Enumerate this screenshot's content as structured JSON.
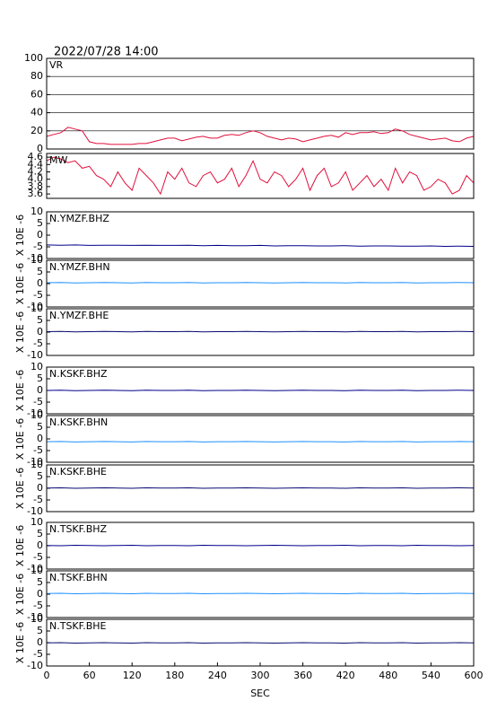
{
  "chart_data": [
    {
      "type": "line",
      "title": "2022/07/28 14:00",
      "label": "VR",
      "color": "#e0103c",
      "grid": true,
      "x": [
        0,
        10,
        20,
        30,
        40,
        50,
        60,
        70,
        80,
        90,
        100,
        110,
        120,
        130,
        140,
        150,
        160,
        170,
        180,
        190,
        200,
        210,
        220,
        230,
        240,
        250,
        260,
        270,
        280,
        290,
        300,
        310,
        320,
        330,
        340,
        350,
        360,
        370,
        380,
        390,
        400,
        410,
        420,
        430,
        440,
        450,
        460,
        470,
        480,
        490,
        500,
        510,
        520,
        530,
        540,
        550,
        560,
        570,
        580,
        590,
        600
      ],
      "values": [
        14,
        16,
        18,
        24,
        22,
        20,
        8,
        6,
        6,
        5,
        5,
        5,
        5,
        6,
        6,
        8,
        10,
        12,
        12,
        9,
        11,
        13,
        14,
        12,
        12,
        15,
        16,
        15,
        18,
        20,
        18,
        14,
        12,
        10,
        12,
        11,
        8,
        10,
        12,
        14,
        15,
        13,
        18,
        16,
        18,
        18,
        19,
        17,
        18,
        22,
        20,
        16,
        14,
        12,
        10,
        11,
        12,
        9,
        8,
        12,
        14
      ],
      "ylim": [
        0,
        100
      ],
      "yticks": [
        0,
        20,
        40,
        60,
        80,
        100
      ]
    },
    {
      "type": "line",
      "label": "MW",
      "color": "#e0103c",
      "x": [
        0,
        10,
        20,
        30,
        40,
        50,
        60,
        70,
        80,
        90,
        100,
        110,
        120,
        130,
        140,
        150,
        160,
        170,
        180,
        190,
        200,
        210,
        220,
        230,
        240,
        250,
        260,
        270,
        280,
        290,
        300,
        310,
        320,
        330,
        340,
        350,
        360,
        370,
        380,
        390,
        400,
        410,
        420,
        430,
        440,
        450,
        460,
        470,
        480,
        490,
        500,
        510,
        520,
        530,
        540,
        550,
        560,
        570,
        580,
        590,
        600
      ],
      "values": [
        4.5,
        4.6,
        4.55,
        4.45,
        4.5,
        4.3,
        4.35,
        4.1,
        4.0,
        3.8,
        4.2,
        3.9,
        3.7,
        4.3,
        4.1,
        3.9,
        3.6,
        4.2,
        4.0,
        4.3,
        3.9,
        3.8,
        4.1,
        4.2,
        3.9,
        4.0,
        4.3,
        3.8,
        4.1,
        4.5,
        4.0,
        3.9,
        4.2,
        4.1,
        3.8,
        4.0,
        4.3,
        3.7,
        4.1,
        4.3,
        3.8,
        3.9,
        4.2,
        3.7,
        3.9,
        4.1,
        3.8,
        4.0,
        3.7,
        4.3,
        3.9,
        4.2,
        4.1,
        3.7,
        3.8,
        4.0,
        3.9,
        3.6,
        3.7,
        4.1,
        3.9
      ],
      "ylim": [
        3.48,
        4.7
      ],
      "yticks": [
        3.6,
        3.8,
        {
          "value": 4,
          "label": "4.0"
        },
        4.2,
        4.4,
        4.6
      ]
    },
    {
      "type": "line",
      "label": "N.YMZF.BHZ",
      "ylabel": "X 10E -6",
      "color": "#00008b",
      "x": [
        0,
        20,
        40,
        60,
        80,
        100,
        120,
        140,
        160,
        180,
        200,
        220,
        240,
        260,
        280,
        300,
        320,
        340,
        360,
        380,
        400,
        420,
        440,
        460,
        480,
        500,
        520,
        540,
        560,
        580,
        600
      ],
      "values": [
        -4.2,
        -4.3,
        -4.2,
        -4.4,
        -4.3,
        -4.3,
        -4.4,
        -4.3,
        -4.4,
        -4.4,
        -4.3,
        -4.5,
        -4.4,
        -4.5,
        -4.5,
        -4.4,
        -4.6,
        -4.5,
        -4.5,
        -4.6,
        -4.6,
        -4.5,
        -4.7,
        -4.6,
        -4.6,
        -4.7,
        -4.7,
        -4.6,
        -4.8,
        -4.7,
        -4.8
      ],
      "ylim": [
        -10,
        10
      ],
      "yticks": [
        -10,
        -5,
        0,
        5,
        10
      ]
    },
    {
      "type": "line",
      "label": "N.YMZF.BHN",
      "ylabel": "X 10E -6",
      "color": "#1e90ff",
      "x": [
        0,
        20,
        40,
        60,
        80,
        100,
        120,
        140,
        160,
        180,
        200,
        220,
        240,
        260,
        280,
        300,
        320,
        340,
        360,
        380,
        400,
        420,
        440,
        460,
        480,
        500,
        520,
        540,
        560,
        580,
        600
      ],
      "values": [
        0.4,
        0.5,
        0.3,
        0.4,
        0.5,
        0.4,
        0.3,
        0.5,
        0.4,
        0.4,
        0.5,
        0.3,
        0.4,
        0.4,
        0.5,
        0.4,
        0.3,
        0.4,
        0.5,
        0.4,
        0.4,
        0.3,
        0.5,
        0.4,
        0.4,
        0.5,
        0.3,
        0.4,
        0.4,
        0.5,
        0.4
      ],
      "ylim": [
        -10,
        10
      ],
      "yticks": [
        -10,
        -5,
        0,
        5,
        10
      ]
    },
    {
      "type": "line",
      "label": "N.YMZF.BHE",
      "ylabel": "X 10E -6",
      "color": "#0a0a70",
      "x": [
        0,
        20,
        40,
        60,
        80,
        100,
        120,
        140,
        160,
        180,
        200,
        220,
        240,
        260,
        280,
        300,
        320,
        340,
        360,
        380,
        400,
        420,
        440,
        460,
        480,
        500,
        520,
        540,
        560,
        580,
        600
      ],
      "values": [
        0.2,
        0.3,
        0.1,
        0.2,
        0.3,
        0.2,
        0.1,
        0.3,
        0.2,
        0.2,
        0.3,
        0.1,
        0.2,
        0.2,
        0.3,
        0.2,
        0.1,
        0.2,
        0.3,
        0.2,
        0.2,
        0.1,
        0.3,
        0.2,
        0.2,
        0.3,
        0.1,
        0.2,
        0.2,
        0.3,
        0.2
      ],
      "ylim": [
        -10,
        10
      ],
      "yticks": [
        -10,
        -5,
        0,
        5,
        10
      ]
    },
    {
      "type": "line",
      "label": "N.KSKF.BHZ",
      "ylabel": "X 10E -6",
      "color": "#00008b",
      "x": [
        0,
        20,
        40,
        60,
        80,
        100,
        120,
        140,
        160,
        180,
        200,
        220,
        240,
        260,
        280,
        300,
        320,
        340,
        360,
        380,
        400,
        420,
        440,
        460,
        480,
        500,
        520,
        540,
        560,
        580,
        600
      ],
      "values": [
        0.0,
        0.1,
        -0.1,
        0.0,
        0.1,
        0.0,
        -0.1,
        0.1,
        0.0,
        0.0,
        0.1,
        -0.1,
        0.0,
        0.0,
        0.1,
        0.0,
        -0.1,
        0.0,
        0.1,
        0.0,
        0.0,
        -0.1,
        0.1,
        0.0,
        0.0,
        0.1,
        -0.1,
        0.0,
        0.0,
        0.1,
        0.0
      ],
      "ylim": [
        -10,
        10
      ],
      "yticks": [
        -10,
        -5,
        0,
        5,
        10
      ]
    },
    {
      "type": "line",
      "label": "N.KSKF.BHN",
      "ylabel": "X 10E -6",
      "color": "#1e90ff",
      "x": [
        0,
        20,
        40,
        60,
        80,
        100,
        120,
        140,
        160,
        180,
        200,
        220,
        240,
        260,
        280,
        300,
        320,
        340,
        360,
        380,
        400,
        420,
        440,
        460,
        480,
        500,
        520,
        540,
        560,
        580,
        600
      ],
      "values": [
        -1.2,
        -1.1,
        -1.3,
        -1.2,
        -1.1,
        -1.2,
        -1.3,
        -1.1,
        -1.2,
        -1.2,
        -1.1,
        -1.3,
        -1.2,
        -1.2,
        -1.1,
        -1.2,
        -1.3,
        -1.2,
        -1.1,
        -1.2,
        -1.2,
        -1.3,
        -1.1,
        -1.2,
        -1.2,
        -1.1,
        -1.3,
        -1.2,
        -1.2,
        -1.1,
        -1.2
      ],
      "ylim": [
        -10,
        10
      ],
      "yticks": [
        -10,
        -5,
        0,
        5,
        10
      ]
    },
    {
      "type": "line",
      "label": "N.KSKF.BHE",
      "ylabel": "X 10E -6",
      "color": "#0a0a70",
      "x": [
        0,
        20,
        40,
        60,
        80,
        100,
        120,
        140,
        160,
        180,
        200,
        220,
        240,
        260,
        280,
        300,
        320,
        340,
        360,
        380,
        400,
        420,
        440,
        460,
        480,
        500,
        520,
        540,
        560,
        580,
        600
      ],
      "values": [
        0.1,
        0.2,
        0.0,
        0.1,
        0.2,
        0.1,
        0.0,
        0.2,
        0.1,
        0.1,
        0.2,
        0.0,
        0.1,
        0.1,
        0.2,
        0.1,
        0.0,
        0.1,
        0.2,
        0.1,
        0.1,
        0.0,
        0.2,
        0.1,
        0.1,
        0.2,
        0.0,
        0.1,
        0.1,
        0.2,
        0.1
      ],
      "ylim": [
        -10,
        10
      ],
      "yticks": [
        -10,
        -5,
        0,
        5,
        10
      ]
    },
    {
      "type": "line",
      "label": "N.TSKF.BHZ",
      "ylabel": "X 10E -6",
      "color": "#00008b",
      "x": [
        0,
        20,
        40,
        60,
        80,
        100,
        120,
        140,
        160,
        180,
        200,
        220,
        240,
        260,
        280,
        300,
        320,
        340,
        360,
        380,
        400,
        420,
        440,
        460,
        480,
        500,
        520,
        540,
        560,
        580,
        600
      ],
      "values": [
        0.1,
        0.0,
        0.2,
        0.1,
        0.0,
        0.1,
        0.2,
        0.0,
        0.1,
        0.1,
        0.0,
        0.2,
        0.1,
        0.1,
        0.0,
        0.1,
        0.2,
        0.1,
        0.0,
        0.1,
        0.1,
        0.2,
        0.0,
        0.1,
        0.1,
        0.0,
        0.2,
        0.1,
        0.1,
        0.0,
        0.1
      ],
      "ylim": [
        -10,
        10
      ],
      "yticks": [
        -10,
        -5,
        0,
        5,
        10
      ]
    },
    {
      "type": "line",
      "label": "N.TSKF.BHN",
      "ylabel": "X 10E -6",
      "color": "#1e90ff",
      "x": [
        0,
        20,
        40,
        60,
        80,
        100,
        120,
        140,
        160,
        180,
        200,
        220,
        240,
        260,
        280,
        300,
        320,
        340,
        360,
        380,
        400,
        420,
        440,
        460,
        480,
        500,
        520,
        540,
        560,
        580,
        600
      ],
      "values": [
        0.3,
        0.4,
        0.2,
        0.3,
        0.4,
        0.3,
        0.2,
        0.4,
        0.3,
        0.3,
        0.4,
        0.2,
        0.3,
        0.3,
        0.4,
        0.3,
        0.2,
        0.3,
        0.4,
        0.3,
        0.3,
        0.2,
        0.4,
        0.3,
        0.3,
        0.4,
        0.2,
        0.3,
        0.3,
        0.4,
        0.3
      ],
      "ylim": [
        -10,
        10
      ],
      "yticks": [
        -10,
        -5,
        0,
        5,
        10
      ]
    },
    {
      "type": "line",
      "label": "N.TSKF.BHE",
      "ylabel": "X 10E -6",
      "color": "#0a0a70",
      "x": [
        0,
        20,
        40,
        60,
        80,
        100,
        120,
        140,
        160,
        180,
        200,
        220,
        240,
        260,
        280,
        300,
        320,
        340,
        360,
        380,
        400,
        420,
        440,
        460,
        480,
        500,
        520,
        540,
        560,
        580,
        600
      ],
      "values": [
        -0.1,
        0.0,
        -0.2,
        -0.1,
        0.0,
        -0.1,
        -0.2,
        0.0,
        -0.1,
        -0.1,
        0.0,
        -0.2,
        -0.1,
        -0.1,
        0.0,
        -0.1,
        -0.2,
        -0.1,
        0.0,
        -0.1,
        -0.1,
        -0.2,
        0.0,
        -0.1,
        -0.1,
        0.0,
        -0.2,
        -0.1,
        -0.1,
        0.0,
        -0.1
      ],
      "ylim": [
        -10,
        10
      ],
      "yticks": [
        -10,
        -5,
        0,
        5,
        10
      ],
      "xlabel": "SEC",
      "xlim": [
        0,
        600
      ],
      "xticks": [
        0,
        60,
        120,
        180,
        240,
        300,
        360,
        420,
        480,
        540,
        600
      ]
    }
  ]
}
